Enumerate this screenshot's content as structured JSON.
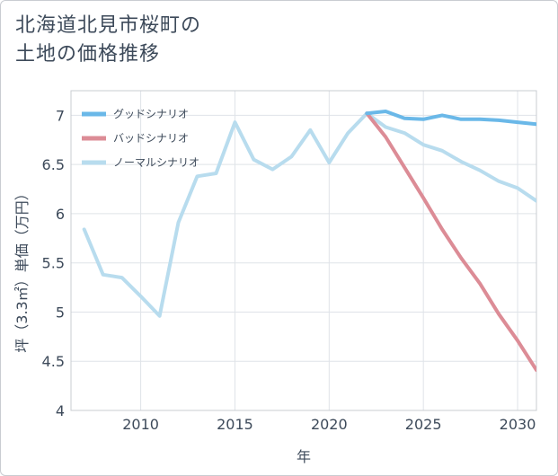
{
  "title_lines": [
    "北海道北見市桜町の",
    "土地の価格推移"
  ],
  "chart_data": {
    "type": "line",
    "title": "北海道北見市桜町の土地の価格推移",
    "xlabel": "年",
    "ylabel": "坪（3.3㎡）単価（万円）",
    "xlim": [
      2006.3,
      2031
    ],
    "ylim": [
      4,
      7.25
    ],
    "xticks": [
      2010,
      2015,
      2020,
      2025,
      2030
    ],
    "xtick_labels": [
      "2010",
      "2015",
      "2020",
      "2025",
      "2030"
    ],
    "yticks": [
      4,
      4.5,
      5,
      5.5,
      6,
      6.5,
      7
    ],
    "ytick_labels": [
      "4",
      "4.5",
      "5",
      "5.5",
      "6",
      "6.5",
      "7"
    ],
    "grid": true,
    "legend_position": "top-left",
    "series": [
      {
        "name": "グッドシナリオ",
        "color": "#6ab8e8",
        "x": [
          2022,
          2023,
          2024,
          2025,
          2026,
          2027,
          2028,
          2029,
          2030,
          2031
        ],
        "values": [
          7.02,
          7.04,
          6.97,
          6.96,
          7.0,
          6.96,
          6.96,
          6.95,
          6.93,
          6.91
        ]
      },
      {
        "name": "バッドシナリオ",
        "color": "#dc8c96",
        "x": [
          2022,
          2023,
          2024,
          2025,
          2026,
          2027,
          2028,
          2029,
          2030,
          2031
        ],
        "values": [
          7.02,
          6.78,
          6.47,
          6.16,
          5.84,
          5.55,
          5.29,
          4.98,
          4.71,
          4.41
        ]
      },
      {
        "name": "ノーマルシナリオ",
        "color": "#b8dcee",
        "x": [
          2007,
          2008,
          2009,
          2010,
          2011,
          2012,
          2013,
          2014,
          2015,
          2016,
          2017,
          2018,
          2019,
          2020,
          2021,
          2022,
          2023,
          2024,
          2025,
          2026,
          2027,
          2028,
          2029,
          2030,
          2031
        ],
        "values": [
          5.84,
          5.38,
          5.35,
          5.16,
          4.96,
          5.91,
          6.38,
          6.41,
          6.93,
          6.55,
          6.45,
          6.58,
          6.85,
          6.52,
          6.82,
          7.02,
          6.88,
          6.82,
          6.7,
          6.64,
          6.53,
          6.44,
          6.33,
          6.26,
          6.13
        ]
      }
    ]
  }
}
